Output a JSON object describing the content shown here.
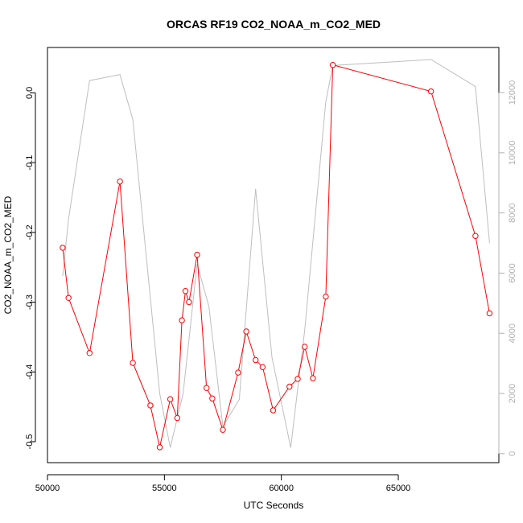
{
  "chart_data": {
    "type": "line",
    "title": "ORCAS RF19 CO2_NOAA_m_CO2_MED",
    "xlabel": "UTC Seconds",
    "ylabel": "CO2_NOAA_m_CO2_MED",
    "xlim": [
      50000,
      69300
    ],
    "ylim": [
      -0.53,
      0.065
    ],
    "xticks": [
      50000,
      55000,
      60000,
      65000
    ],
    "yticks": [
      -0.5,
      -0.4,
      -0.3,
      -0.2,
      -0.1,
      0.0
    ],
    "ytick_labels": [
      "-0.5",
      "-0.4",
      "-0.3",
      "-0.2",
      "-0.1",
      "0.0"
    ],
    "y2lim": [
      -300,
      13500
    ],
    "y2ticks": [
      0,
      2000,
      4000,
      6000,
      8000,
      10000,
      12000
    ],
    "grid": false,
    "series": [
      {
        "axis": "right",
        "color": "#bebebe",
        "marker": "none",
        "x": [
          50650,
          50900,
          51800,
          53100,
          53650,
          54800,
          55250,
          55800,
          56400,
          56900,
          57500,
          58200,
          58900,
          59600,
          60400,
          61000,
          61900,
          62200,
          66400,
          68300,
          68900
        ],
        "y": [
          5900,
          7800,
          12400,
          12600,
          11100,
          2000,
          200,
          2000,
          6300,
          4900,
          900,
          1800,
          8800,
          3200,
          200,
          4100,
          11700,
          12900,
          13100,
          12200,
          7000
        ]
      },
      {
        "axis": "left",
        "color": "#ff0000",
        "marker": "open-circle",
        "x": [
          50650,
          50900,
          51800,
          53100,
          53650,
          54400,
          54800,
          55250,
          55550,
          55750,
          55900,
          56050,
          56400,
          56800,
          57050,
          57500,
          58150,
          58500,
          58900,
          59200,
          59650,
          60350,
          60700,
          61000,
          61350,
          61900,
          62200,
          66400,
          68300,
          68900
        ],
        "y": [
          -0.222,
          -0.294,
          -0.373,
          -0.127,
          -0.387,
          -0.448,
          -0.508,
          -0.439,
          -0.466,
          -0.326,
          -0.284,
          -0.3,
          -0.232,
          -0.423,
          -0.438,
          -0.483,
          -0.401,
          -0.342,
          -0.383,
          -0.393,
          -0.455,
          -0.421,
          -0.41,
          -0.364,
          -0.409,
          -0.292,
          0.04,
          0.002,
          -0.205,
          -0.316
        ]
      }
    ]
  }
}
